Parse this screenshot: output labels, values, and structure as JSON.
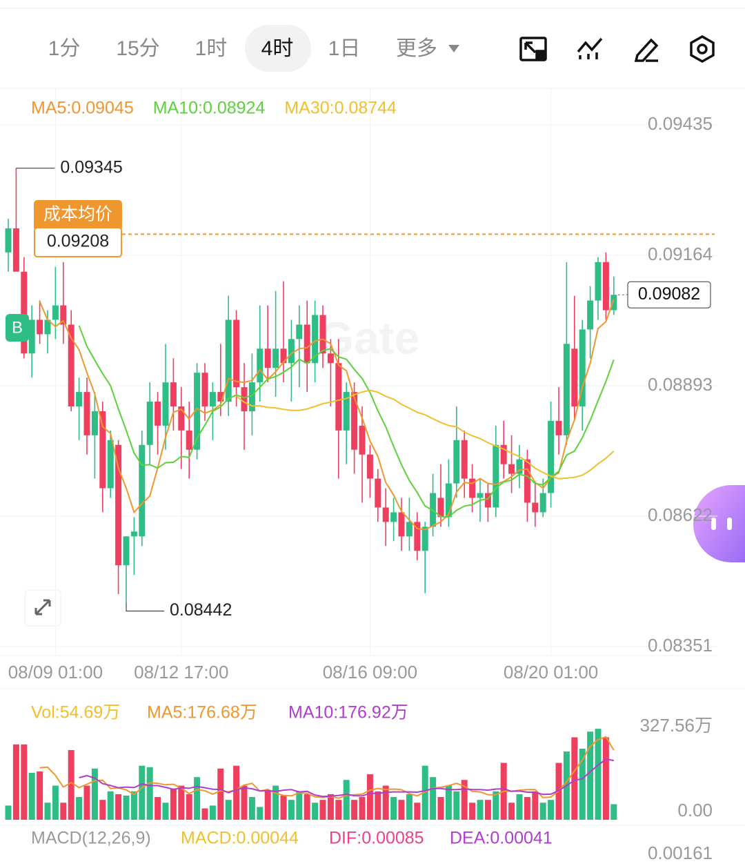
{
  "toolbar": {
    "tabs": [
      "1分",
      "15分",
      "1时",
      "4时",
      "1日",
      "更多"
    ],
    "active": 3
  },
  "chart_data": [
    {
      "type": "candlestick",
      "moving_averages": [
        {
          "label": "MA5:0.09045",
          "period": 5,
          "color": "#f0962e"
        },
        {
          "label": "MA10:0.08924",
          "period": 10,
          "color": "#5bd13c"
        },
        {
          "label": "MA30:0.08744",
          "period": 30,
          "color": "#f0c02c"
        }
      ],
      "up_color": "#2ebd85",
      "down_color": "#ef3f5e",
      "categories": [
        null,
        null,
        null,
        null,
        null,
        null,
        "08/09 01:00",
        null,
        null,
        null,
        null,
        null,
        null,
        null,
        null,
        null,
        null,
        null,
        null,
        null,
        null,
        null,
        "08/12 17:00",
        null,
        null,
        null,
        null,
        null,
        null,
        null,
        null,
        null,
        null,
        null,
        null,
        null,
        null,
        null,
        null,
        null,
        null,
        null,
        null,
        null,
        null,
        null,
        "08/16 09:00",
        null,
        null,
        null,
        null,
        null,
        null,
        null,
        null,
        null,
        null,
        null,
        null,
        null,
        null,
        null,
        null,
        null,
        null,
        null,
        null,
        null,
        null,
        "08/20 01:00",
        null,
        null,
        null,
        null,
        null,
        null,
        null,
        null
      ],
      "candles": [
        [
          0.0917,
          0.0924,
          0.0913,
          0.0922
        ],
        [
          0.0922,
          0.09345,
          0.0913,
          0.0913
        ],
        [
          0.0913,
          0.0916,
          0.0895,
          0.0896
        ],
        [
          0.0896,
          0.0906,
          0.0891,
          0.0903
        ],
        [
          0.0903,
          0.0907,
          0.0898,
          0.09
        ],
        [
          0.09,
          0.0905,
          0.0896,
          0.0903
        ],
        [
          0.0903,
          0.0914,
          0.0899,
          0.0906
        ],
        [
          0.0906,
          0.0915,
          0.0898,
          0.0902
        ],
        [
          0.0902,
          0.0905,
          0.0884,
          0.0885
        ],
        [
          0.0885,
          0.0891,
          0.0878,
          0.0888
        ],
        [
          0.0888,
          0.0891,
          0.0875,
          0.0879
        ],
        [
          0.0879,
          0.0888,
          0.087,
          0.0884
        ],
        [
          0.0884,
          0.0886,
          0.0863,
          0.0868
        ],
        [
          0.0868,
          0.088,
          0.0866,
          0.0878
        ],
        [
          0.0877,
          0.0878,
          0.0846,
          0.0852
        ],
        [
          0.0852,
          0.0858,
          0.08442,
          0.0858
        ],
        [
          0.0858,
          0.0862,
          0.085,
          0.0859
        ],
        [
          0.0858,
          0.088,
          0.0856,
          0.0877
        ],
        [
          0.0877,
          0.089,
          0.0873,
          0.0886
        ],
        [
          0.0886,
          0.0888,
          0.0875,
          0.0881
        ],
        [
          0.0881,
          0.0898,
          0.0876,
          0.089
        ],
        [
          0.089,
          0.0895,
          0.088,
          0.0885
        ],
        [
          0.0885,
          0.0889,
          0.0872,
          0.088
        ],
        [
          0.088,
          0.0886,
          0.087,
          0.0876
        ],
        [
          0.0876,
          0.0894,
          0.0874,
          0.0892
        ],
        [
          0.0892,
          0.0894,
          0.0882,
          0.0885
        ],
        [
          0.0885,
          0.089,
          0.0878,
          0.0888
        ],
        [
          0.0888,
          0.0898,
          0.0883,
          0.0886
        ],
        [
          0.0886,
          0.0908,
          0.0883,
          0.0903
        ],
        [
          0.0903,
          0.0905,
          0.0885,
          0.0889
        ],
        [
          0.0889,
          0.0894,
          0.0876,
          0.0884
        ],
        [
          0.0884,
          0.0896,
          0.0879,
          0.089
        ],
        [
          0.089,
          0.0906,
          0.0886,
          0.0897
        ],
        [
          0.0897,
          0.0906,
          0.089,
          0.0893
        ],
        [
          0.0893,
          0.0909,
          0.0887,
          0.0897
        ],
        [
          0.0897,
          0.0911,
          0.089,
          0.0894
        ],
        [
          0.0894,
          0.0903,
          0.0886,
          0.0899
        ],
        [
          0.0899,
          0.0906,
          0.0889,
          0.0902
        ],
        [
          0.0902,
          0.0907,
          0.0888,
          0.0894
        ],
        [
          0.0894,
          0.0907,
          0.089,
          0.0904
        ],
        [
          0.0904,
          0.0906,
          0.0893,
          0.0896
        ],
        [
          0.0896,
          0.0899,
          0.0885,
          0.0894
        ],
        [
          0.0894,
          0.0899,
          0.087,
          0.088
        ],
        [
          0.088,
          0.089,
          0.0873,
          0.0888
        ],
        [
          0.0888,
          0.089,
          0.0871,
          0.0876
        ],
        [
          0.0881,
          0.0885,
          0.0865,
          0.0875
        ],
        [
          0.0875,
          0.0877,
          0.0866,
          0.087
        ],
        [
          0.087,
          0.0872,
          0.0861,
          0.0864
        ],
        [
          0.0864,
          0.0868,
          0.0856,
          0.0861
        ],
        [
          0.0861,
          0.0866,
          0.0857,
          0.0863
        ],
        [
          0.0863,
          0.0866,
          0.0855,
          0.0858
        ],
        [
          0.0858,
          0.0866,
          0.0855,
          0.0861
        ],
        [
          0.0861,
          0.0863,
          0.0853,
          0.0855
        ],
        [
          0.0855,
          0.0861,
          0.08462,
          0.086
        ],
        [
          0.086,
          0.0871,
          0.0858,
          0.0867
        ],
        [
          0.0866,
          0.0873,
          0.086,
          0.0862
        ],
        [
          0.0862,
          0.0874,
          0.086,
          0.0869
        ],
        [
          0.0869,
          0.0885,
          0.0866,
          0.0878
        ],
        [
          0.0878,
          0.088,
          0.0866,
          0.087
        ],
        [
          0.087,
          0.0873,
          0.0863,
          0.0866
        ],
        [
          0.0866,
          0.087,
          0.0861,
          0.0867
        ],
        [
          0.0867,
          0.0869,
          0.0861,
          0.0864
        ],
        [
          0.0864,
          0.0881,
          0.0862,
          0.0877
        ],
        [
          0.0877,
          0.0882,
          0.087,
          0.0873
        ],
        [
          0.0873,
          0.0879,
          0.0867,
          0.0871
        ],
        [
          0.0871,
          0.0877,
          0.0868,
          0.0874
        ],
        [
          0.0874,
          0.0876,
          0.0861,
          0.0865
        ],
        [
          0.0865,
          0.0869,
          0.086,
          0.0863
        ],
        [
          0.0863,
          0.087,
          0.0862,
          0.0867
        ],
        [
          0.0867,
          0.0886,
          0.0864,
          0.0882
        ],
        [
          0.0882,
          0.0889,
          0.0875,
          0.0879
        ],
        [
          0.0879,
          0.0915,
          0.0877,
          0.0898
        ],
        [
          0.0897,
          0.0908,
          0.0882,
          0.0885
        ],
        [
          0.0885,
          0.0903,
          0.088,
          0.0901
        ],
        [
          0.0901,
          0.091,
          0.0895,
          0.0907
        ],
        [
          0.0907,
          0.0916,
          0.0903,
          0.0915
        ],
        [
          0.0915,
          0.0917,
          0.0903,
          0.0905
        ],
        [
          0.0905,
          0.0912,
          0.0904,
          0.09082
        ]
      ],
      "ylim": [
        0.08351,
        0.09435
      ],
      "yticks": [
        0.09435,
        0.09164,
        0.08893,
        0.08622,
        0.08351
      ],
      "high_label": 0.09345,
      "low_label": 0.08442,
      "cost_line": {
        "label": "成本均价",
        "value": 0.09208,
        "color": "#f0962e"
      },
      "last_price": 0.09082,
      "badge": "B",
      "watermark": "Gate"
    },
    {
      "type": "bar",
      "legend": {
        "label": "Vol:54.69万",
        "color": "#f0c02c"
      },
      "moving_averages": [
        {
          "label": "MA5:176.68万",
          "period": 5,
          "color": "#f0962e"
        },
        {
          "label": "MA10:176.92万",
          "period": 10,
          "color": "#b03ccf"
        }
      ],
      "values": [
        50,
        265,
        265,
        165,
        170,
        60,
        120,
        60,
        245,
        80,
        120,
        180,
        70,
        100,
        90,
        85,
        100,
        190,
        185,
        80,
        60,
        110,
        120,
        90,
        150,
        40,
        50,
        180,
        70,
        190,
        120,
        80,
        45,
        100,
        120,
        85,
        70,
        100,
        90,
        60,
        70,
        90,
        70,
        140,
        70,
        80,
        160,
        100,
        120,
        80,
        70,
        90,
        60,
        190,
        150,
        80,
        120,
        100,
        140,
        60,
        70,
        70,
        100,
        200,
        60,
        90,
        80,
        100,
        60,
        70,
        200,
        240,
        290,
        250,
        310,
        320,
        290,
        54.69
      ],
      "ylim": [
        0,
        327.56
      ],
      "yticks": [
        {
          "value": 327.56,
          "label": "327.56万"
        },
        {
          "value": 0,
          "label": "0.00"
        }
      ]
    },
    {
      "type": "macd",
      "labels": [
        {
          "text": "MACD(12,26,9)",
          "color": "#999999"
        },
        {
          "text": "MACD:0.00044",
          "color": "#f0c02c"
        },
        {
          "text": "DIF:0.00085",
          "color": "#ef3f8a"
        },
        {
          "text": "DEA:0.00041",
          "color": "#b03ccf"
        }
      ],
      "yticks": [
        0.00161
      ]
    }
  ]
}
